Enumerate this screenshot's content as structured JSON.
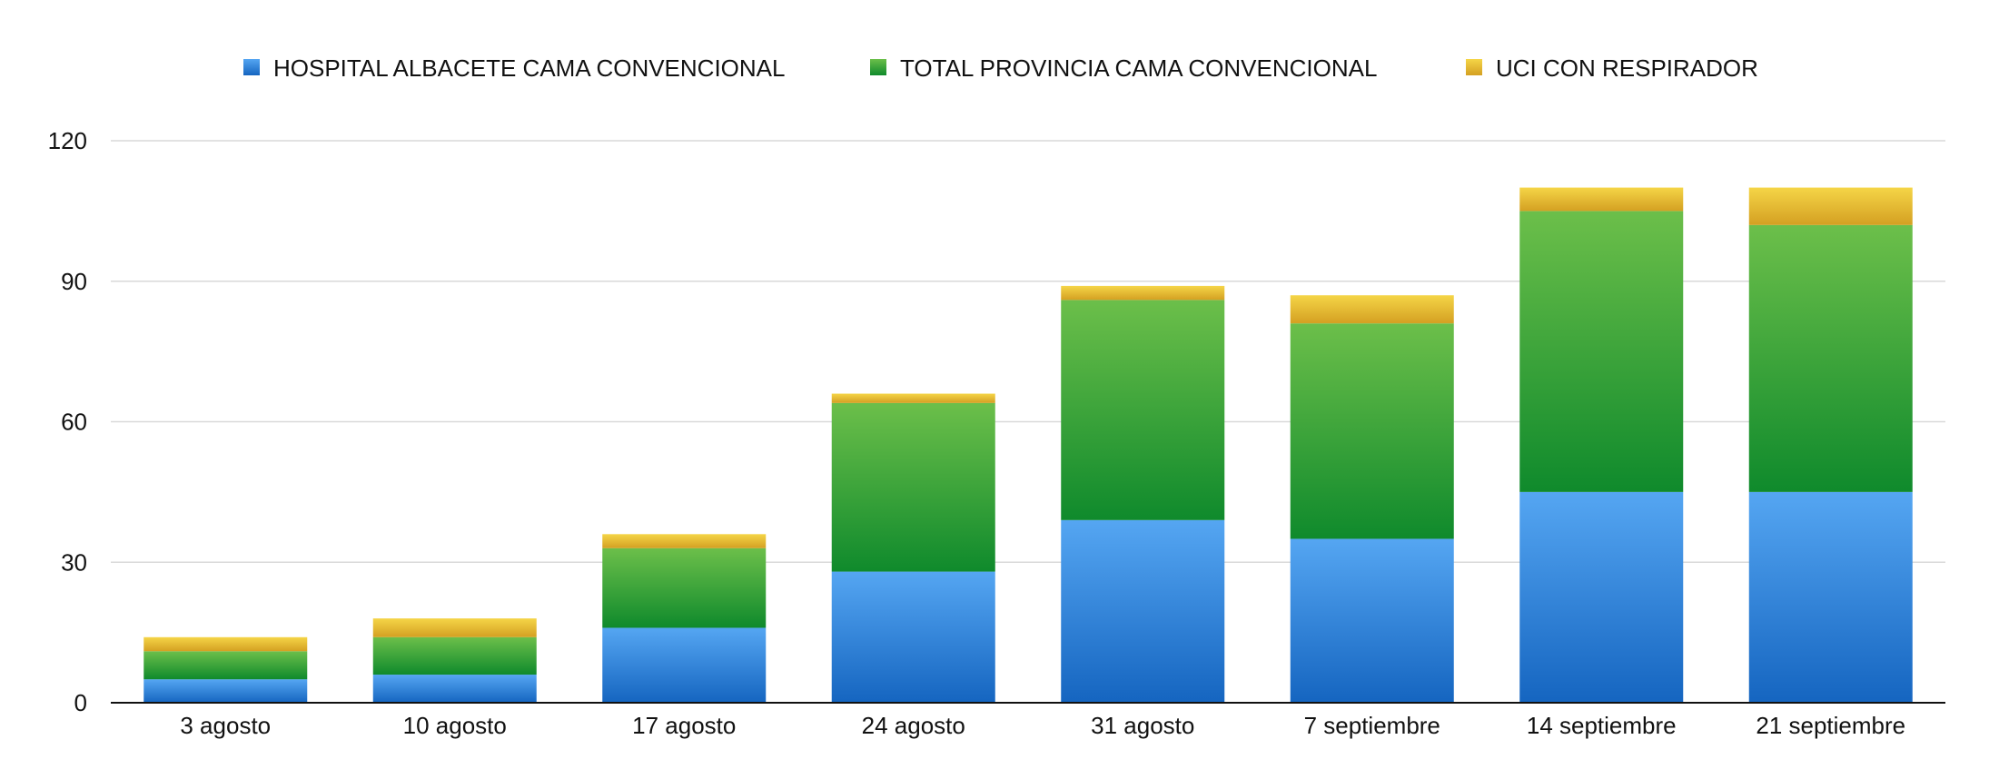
{
  "chart_data": {
    "type": "bar",
    "stacked": true,
    "title": "",
    "xlabel": "",
    "ylabel": "",
    "ylim": [
      0,
      120
    ],
    "yticks": [
      0,
      30,
      60,
      90,
      120
    ],
    "grid": true,
    "legend_position": "top",
    "categories": [
      "3 agosto",
      "10 agosto",
      "17 agosto",
      "24 agosto",
      "31 agosto",
      "7 septiembre",
      "14 septiembre",
      "21 septiembre"
    ],
    "series": [
      {
        "name": "HOSPITAL ALBACETE CAMA CONVENCIONAL",
        "color": "#2e86de",
        "color_light": "#55a6f2",
        "color_dark": "#1565c0",
        "values": [
          5,
          6,
          16,
          28,
          39,
          35,
          45,
          45
        ]
      },
      {
        "name": "TOTAL PROVINCIA CAMA CONVENCIONAL",
        "color": "#2ea043",
        "color_light": "#6cbf4a",
        "color_dark": "#0f8a2c",
        "values": [
          6,
          8,
          17,
          36,
          47,
          46,
          60,
          57
        ]
      },
      {
        "name": "UCI CON RESPIRADOR",
        "color": "#e8b92b",
        "color_light": "#f5d547",
        "color_dark": "#d4a022",
        "values": [
          3,
          4,
          3,
          2,
          3,
          6,
          5,
          8
        ]
      }
    ]
  }
}
